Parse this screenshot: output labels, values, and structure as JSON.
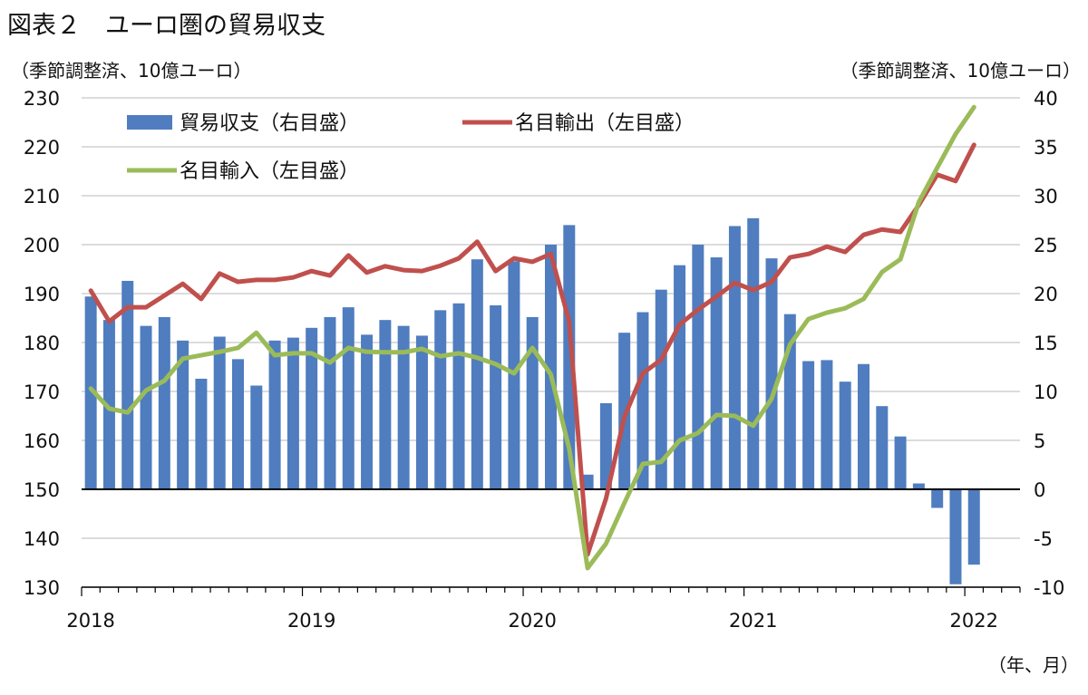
{
  "title": "図表２　ユーロ圏の貿易収支",
  "chart_data": {
    "type": "bar+line",
    "left_unit": "（季節調整済、10億ユーロ）",
    "right_unit": "（季節調整済、10億ユーロ）",
    "x_unit": "（年、月）",
    "left_ylim": [
      130,
      230
    ],
    "left_ticks": [
      "130",
      "140",
      "150",
      "160",
      "170",
      "180",
      "190",
      "200",
      "210",
      "220",
      "230"
    ],
    "right_ylim": [
      -10,
      40
    ],
    "right_ticks": [
      "-10",
      "-5",
      "0",
      "5",
      "10",
      "15",
      "20",
      "25",
      "30",
      "35",
      "40"
    ],
    "x_tick_labels": [
      "2018",
      "2019",
      "2020",
      "2021",
      "2022"
    ],
    "grid": true,
    "legend_placement": "top-left",
    "colors": {
      "bar": "#4f7dbf",
      "export": "#c0504d",
      "import": "#9bbb59"
    },
    "months": [
      "2018-01",
      "2018-02",
      "2018-03",
      "2018-04",
      "2018-05",
      "2018-06",
      "2018-07",
      "2018-08",
      "2018-09",
      "2018-10",
      "2018-11",
      "2018-12",
      "2019-01",
      "2019-02",
      "2019-03",
      "2019-04",
      "2019-05",
      "2019-06",
      "2019-07",
      "2019-08",
      "2019-09",
      "2019-10",
      "2019-11",
      "2019-12",
      "2020-01",
      "2020-02",
      "2020-03",
      "2020-04",
      "2020-05",
      "2020-06",
      "2020-07",
      "2020-08",
      "2020-09",
      "2020-10",
      "2020-11",
      "2020-12",
      "2021-01",
      "2021-02",
      "2021-03",
      "2021-04",
      "2021-05",
      "2021-06",
      "2021-07",
      "2021-08",
      "2021-09",
      "2021-10",
      "2021-11",
      "2021-12",
      "2022-01"
    ],
    "series": [
      {
        "name": "貿易収支（右目盛）",
        "type": "bar",
        "axis": "right",
        "values": [
          19.7,
          17.3,
          21.3,
          16.7,
          17.6,
          15.2,
          11.3,
          15.6,
          13.3,
          10.6,
          15.2,
          15.5,
          16.5,
          17.6,
          18.6,
          15.8,
          17.3,
          16.7,
          15.7,
          18.3,
          19.0,
          23.5,
          18.8,
          23.3,
          17.6,
          25.0,
          27.0,
          1.5,
          8.8,
          16.0,
          18.1,
          20.4,
          22.9,
          25.0,
          23.7,
          26.9,
          27.7,
          23.6,
          17.9,
          13.1,
          13.2,
          11.0,
          12.8,
          8.5,
          5.4,
          0.6,
          -1.9,
          -9.7,
          -7.7
        ]
      },
      {
        "name": "名目輸出（左目盛）",
        "type": "line",
        "axis": "left",
        "values": [
          190.6,
          184.3,
          187.2,
          187.2,
          189.6,
          192.0,
          188.9,
          194.1,
          192.4,
          192.8,
          192.8,
          193.3,
          194.6,
          193.7,
          197.8,
          194.3,
          195.6,
          194.8,
          194.6,
          195.7,
          197.2,
          200.6,
          194.6,
          197.2,
          196.5,
          198.1,
          184.3,
          136.7,
          148.1,
          164.8,
          173.7,
          176.5,
          183.7,
          186.7,
          189.4,
          192.2,
          190.7,
          192.4,
          197.4,
          198.1,
          199.6,
          198.5,
          202.0,
          203.1,
          202.6,
          208.1,
          214.3,
          213.0,
          220.4
        ]
      },
      {
        "name": "名目輸入（左目盛）",
        "type": "line",
        "axis": "left",
        "values": [
          170.6,
          166.5,
          165.7,
          170.2,
          172.2,
          176.7,
          177.4,
          178.1,
          178.9,
          182.0,
          177.4,
          177.8,
          177.8,
          175.9,
          178.9,
          178.1,
          178.0,
          178.0,
          178.7,
          177.2,
          177.8,
          176.9,
          175.6,
          173.7,
          178.9,
          173.5,
          158.3,
          133.9,
          138.9,
          147.2,
          155.2,
          155.6,
          160.0,
          161.5,
          165.2,
          165.0,
          163.0,
          168.5,
          179.6,
          184.8,
          186.1,
          187.0,
          188.9,
          194.4,
          197.0,
          208.7,
          215.7,
          222.6,
          228.1
        ]
      }
    ]
  }
}
